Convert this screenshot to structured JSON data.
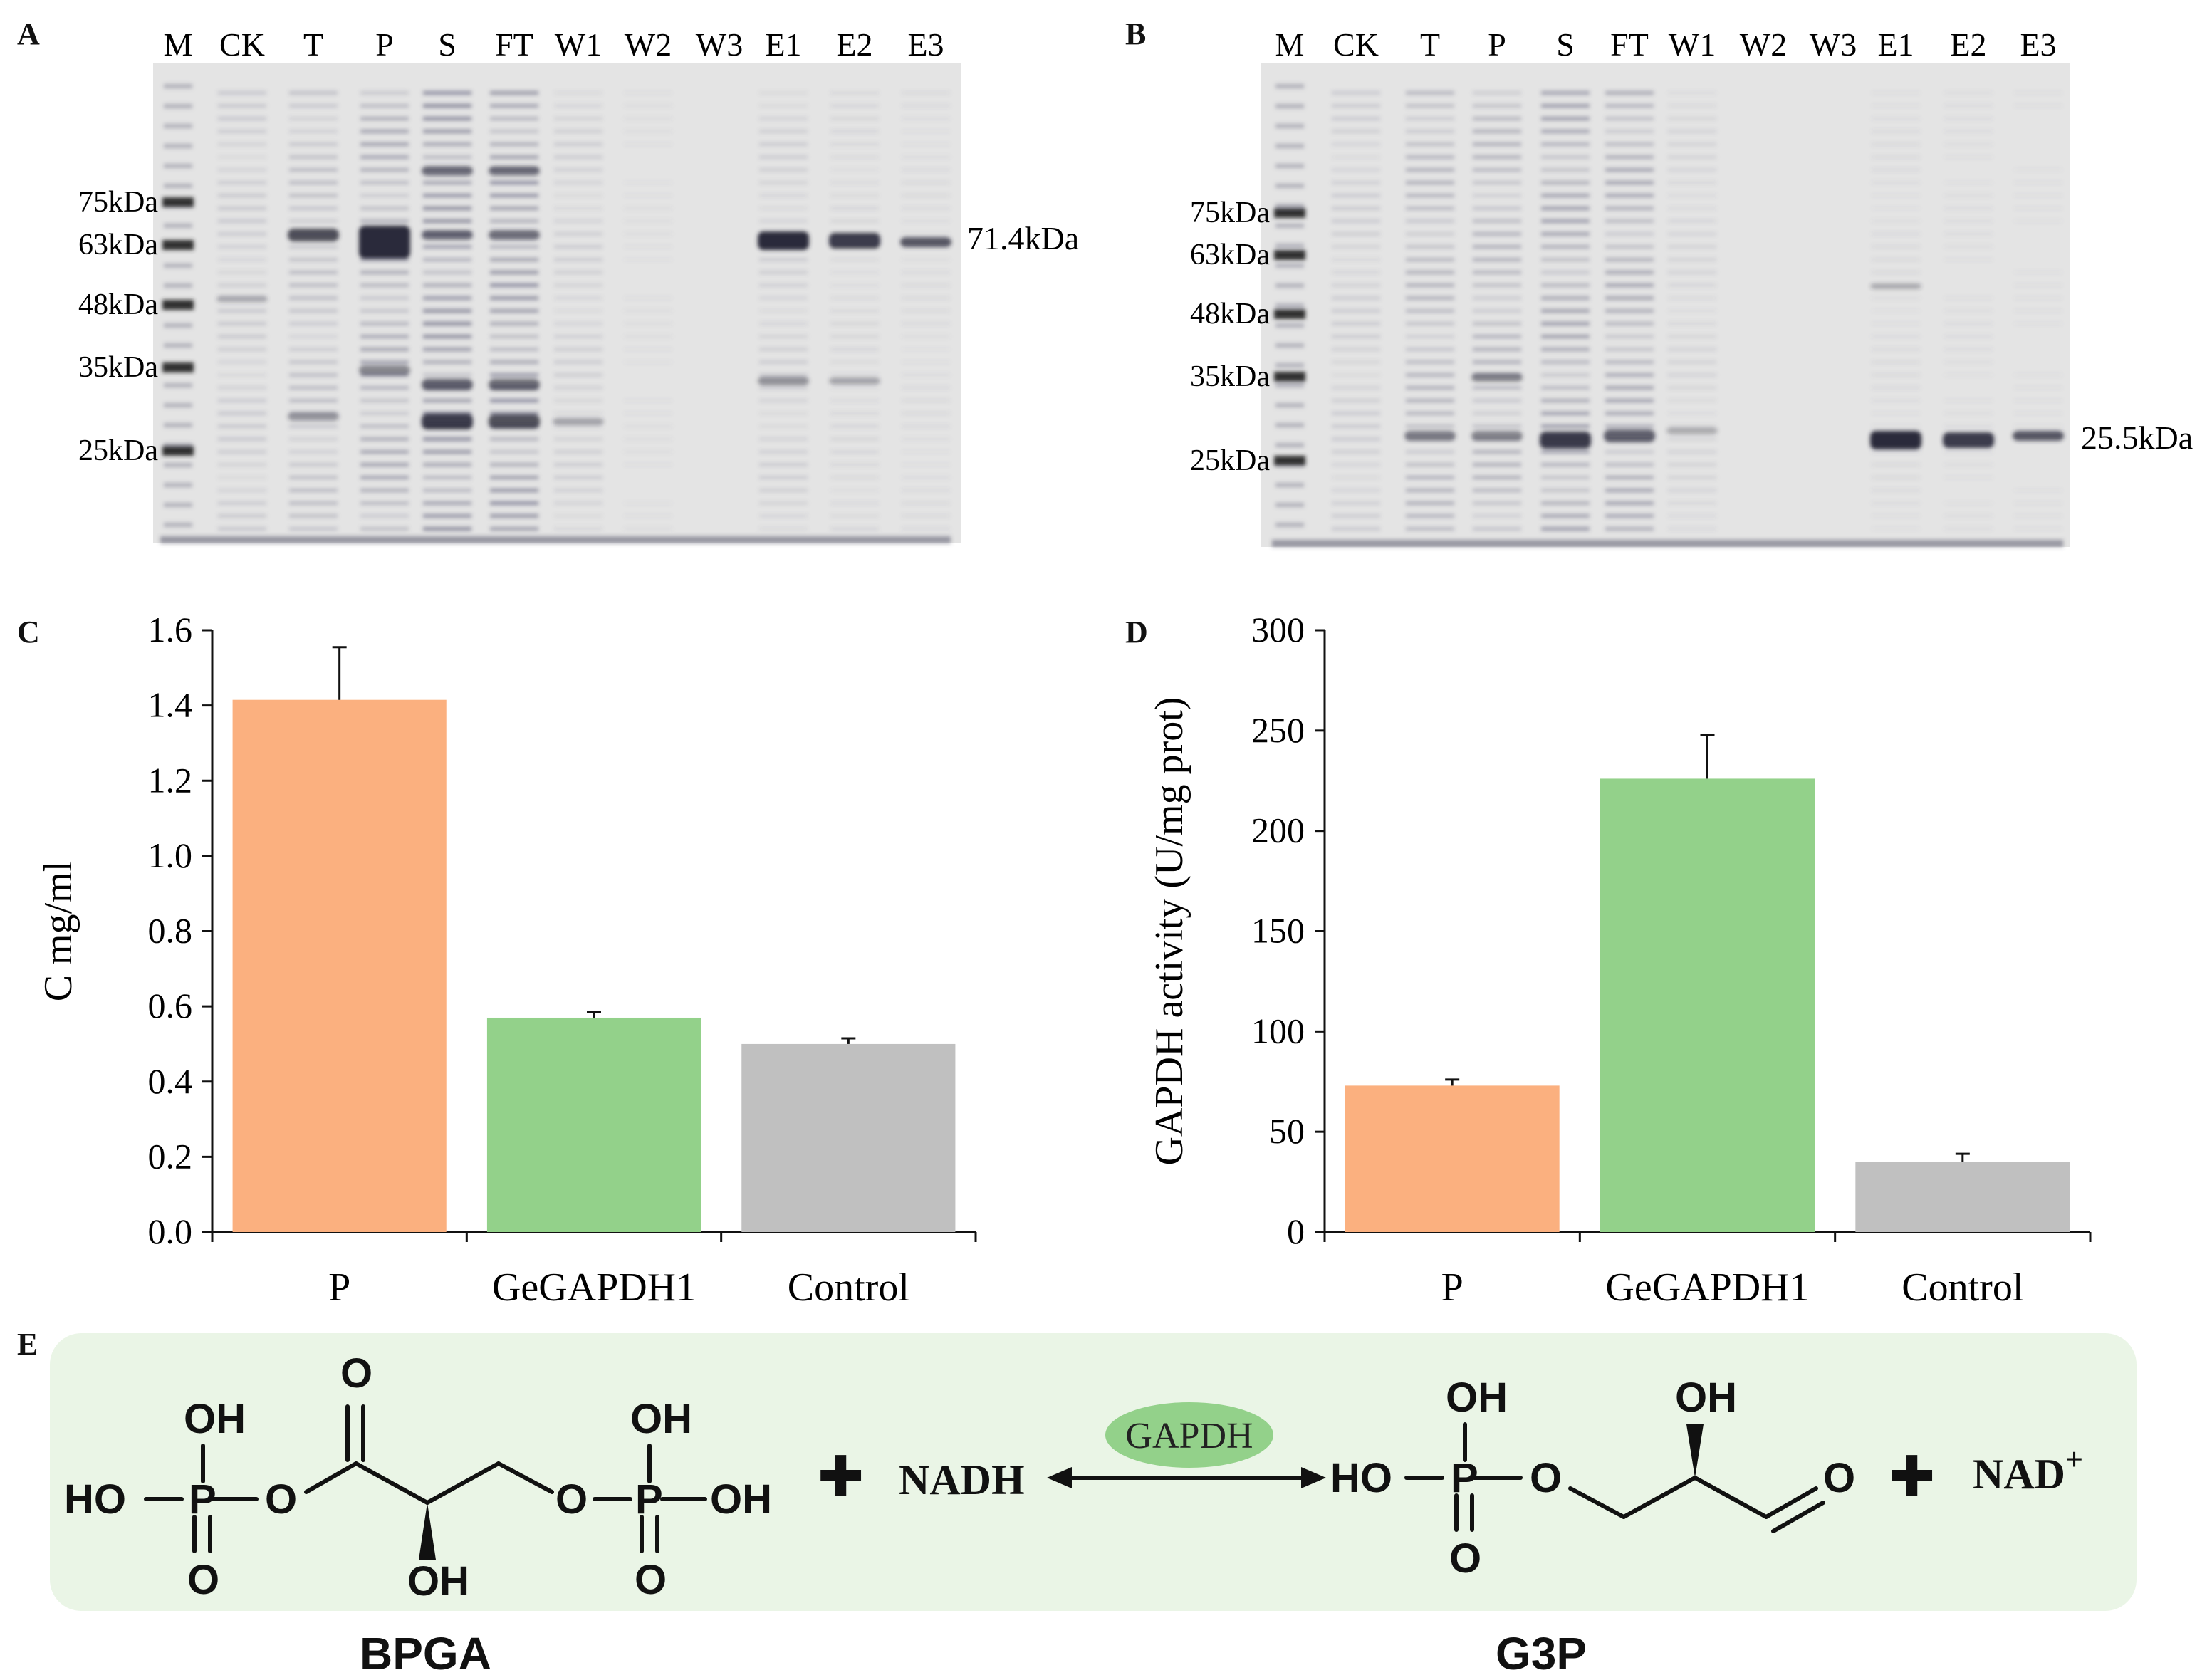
{
  "panels": {
    "A": "A",
    "B": "B",
    "C": "C",
    "D": "D",
    "E": "E"
  },
  "gel_A": {
    "lanes": [
      "M",
      "CK",
      "T",
      "P",
      "S",
      "FT",
      "W1",
      "W2",
      "W3",
      "E1",
      "E2",
      "E3"
    ],
    "markers": [
      "75kDa",
      "63kDa",
      "48kDa",
      "35kDa",
      "25kDa"
    ],
    "band_label": "71.4kDa"
  },
  "gel_B": {
    "lanes": [
      "M",
      "CK",
      "T",
      "P",
      "S",
      "FT",
      "W1",
      "W2",
      "W3",
      "E1",
      "E2",
      "E3"
    ],
    "markers": [
      "75kDa",
      "63kDa",
      "48kDa",
      "35kDa",
      "25kDa"
    ],
    "band_label": "25.5kDa"
  },
  "chart_data": [
    {
      "type": "bar",
      "panel": "C",
      "categories": [
        "P",
        "GeGAPDH1",
        "Control"
      ],
      "values": [
        1.415,
        0.57,
        0.5
      ],
      "errors": [
        0.14,
        0.015,
        0.015
      ],
      "colors": [
        "#fbb07f",
        "#93d18a",
        "#c0c0c0"
      ],
      "ylabel": "C mg/ml",
      "ylim": [
        0,
        1.6
      ],
      "yticks": [
        "0.0",
        "0.2",
        "0.4",
        "0.6",
        "0.8",
        "1.0",
        "1.2",
        "1.4",
        "1.6"
      ],
      "grid": false
    },
    {
      "type": "bar",
      "panel": "D",
      "categories": [
        "P",
        "GeGAPDH1",
        "Control"
      ],
      "values": [
        73,
        226,
        35
      ],
      "errors": [
        3,
        22,
        4
      ],
      "colors": [
        "#fbb07f",
        "#93d18a",
        "#c0c0c0"
      ],
      "ylabel": "GAPDH activity (U/mg prot)",
      "ylim": [
        0,
        300
      ],
      "yticks": [
        "0",
        "50",
        "100",
        "150",
        "200",
        "250",
        "300"
      ],
      "grid": false
    }
  ],
  "scheme": {
    "reactant_name": "BPGA",
    "product_name": "G3P",
    "cofactor_in": "NADH",
    "cofactor_out": "NAD",
    "cofactor_out_sup": "+",
    "enzyme": "GAPDH",
    "plus": "✚",
    "atoms": {
      "OH": "OH",
      "HO": "HO",
      "P": "P",
      "O": "O"
    }
  }
}
